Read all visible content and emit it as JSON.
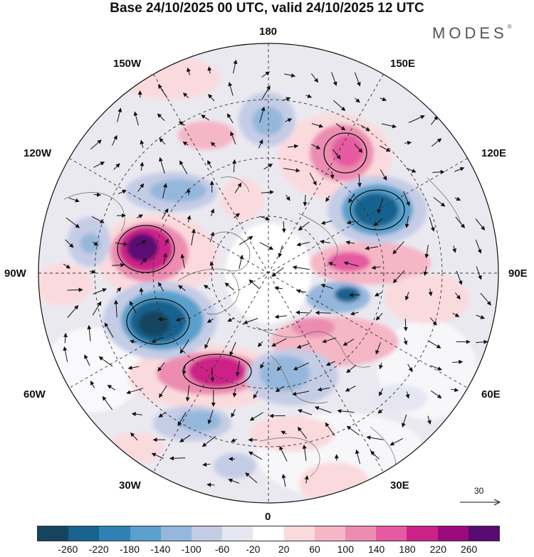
{
  "title": "Base 24/10/2025 00 UTC, valid 24/10/2025 12 UTC",
  "logo": "MODES",
  "logo_mark": "®",
  "lon_labels": {
    "top": "180",
    "top_left": "150W",
    "top_right": "150E",
    "upper_left": "120W",
    "upper_right": "120E",
    "left": "90W",
    "right": "90E",
    "lower_left": "60W",
    "lower_right": "60E",
    "bottom_left": "30W",
    "bottom_right": "30E",
    "bottom": "0"
  },
  "reference_vector": "30",
  "colorbar": {
    "colors": [
      "#16445f",
      "#17628f",
      "#2f80b5",
      "#5aa0cc",
      "#95b7dc",
      "#c4cce6",
      "#e6e6f2",
      "#ffffff",
      "#fadadd",
      "#f5b6c6",
      "#ec8cb1",
      "#e55aa0",
      "#cc2288",
      "#9b0a7c",
      "#5a0a73"
    ],
    "ticks": [
      "-260",
      "-220",
      "-180",
      "-140",
      "-100",
      "-60",
      "-20",
      "20",
      "60",
      "100",
      "140",
      "180",
      "220",
      "260"
    ]
  }
}
